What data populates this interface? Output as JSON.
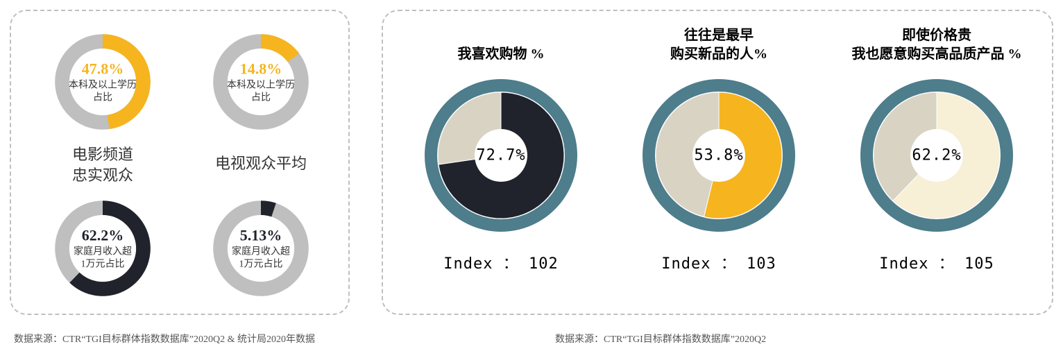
{
  "colors": {
    "track": "#bfbfbf",
    "yellow": "#f6b41e",
    "dark": "#20232c",
    "ring_blue": "#4e7d8c",
    "cream_dark": "#d9d3c3",
    "gold": "#f6b41e",
    "cream_light": "#f7efd6",
    "white": "#ffffff",
    "source_text": "#555555"
  },
  "left_panel": {
    "col1_label": "电影频道\n忠实观众",
    "col2_label": "电视观众平均",
    "donuts": [
      {
        "id": "edu-loyal",
        "pct": 47.8,
        "pct_text": "47.8%",
        "desc": "本科及以上学历\n占比",
        "fill": "#f6b41e",
        "pct_color": "#f6b41e"
      },
      {
        "id": "edu-avg",
        "pct": 14.8,
        "pct_text": "14.8%",
        "desc": "本科及以上学历\n占比",
        "fill": "#f6b41e",
        "pct_color": "#f6b41e"
      },
      {
        "id": "income-loyal",
        "pct": 62.2,
        "pct_text": "62.2%",
        "desc": "家庭月收入超\n1万元占比",
        "fill": "#20232c",
        "pct_color": "#20232c"
      },
      {
        "id": "income-avg",
        "pct": 5.13,
        "pct_text": "5.13%",
        "desc": "家庭月收入超\n1万元占比",
        "fill": "#20232c",
        "pct_color": "#20232c"
      }
    ]
  },
  "right_panel": {
    "items": [
      {
        "id": "like-shopping",
        "title": "我喜欢购物 %",
        "pct": 72.7,
        "pct_text": "72.7%",
        "index_text": "Index ： 102",
        "slices": [
          {
            "frac": 0.727,
            "color": "#20232c"
          },
          {
            "frac": 0.273,
            "color": "#d9d3c3"
          }
        ]
      },
      {
        "id": "early-adopter",
        "title": "往往是最早\n购买新品的人%",
        "pct": 53.8,
        "pct_text": "53.8%",
        "index_text": "Index ： 103",
        "slices": [
          {
            "frac": 0.538,
            "color": "#f6b41e"
          },
          {
            "frac": 0.462,
            "color": "#d9d3c3"
          }
        ]
      },
      {
        "id": "premium-willing",
        "title": "即使价格贵\n我也愿意购买高品质产品 %",
        "pct": 62.2,
        "pct_text": "62.2%",
        "index_text": "Index ： 105",
        "slices": [
          {
            "frac": 0.622,
            "color": "#f7efd6"
          },
          {
            "frac": 0.378,
            "color": "#d9d3c3"
          }
        ]
      }
    ]
  },
  "sources": {
    "left": "数据来源：CTR“TGI目标群体指数数据库”2020Q2  &  统计局2020年数据",
    "right": "数据来源：CTR“TGI目标群体指数数据库”2020Q2"
  },
  "chart_style": {
    "small_donut": {
      "outer_r": 80,
      "inner_r": 56,
      "track_color": "#bfbfbf",
      "start_angle_deg": -90
    },
    "big_donut": {
      "outer_r": 110,
      "inner_r_color": 38,
      "ring_width": 18,
      "ring_color": "#4e7d8c",
      "start_angle_deg": -90,
      "center_bg": "#ffffff"
    }
  }
}
